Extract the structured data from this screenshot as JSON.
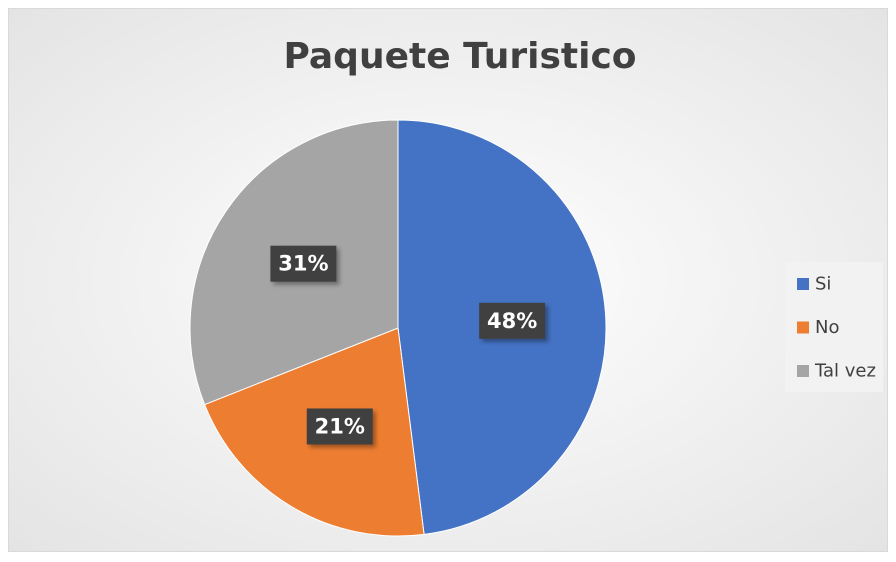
{
  "chart_data": {
    "type": "pie",
    "title": "Paquete Turistico",
    "categories": [
      "Si",
      "No",
      "Tal vez"
    ],
    "values": [
      48,
      21,
      31
    ],
    "value_labels": [
      "48%",
      "21%",
      "31%"
    ],
    "colors": [
      "#4472c4",
      "#ed7d31",
      "#a5a5a5"
    ],
    "legend": "right"
  }
}
